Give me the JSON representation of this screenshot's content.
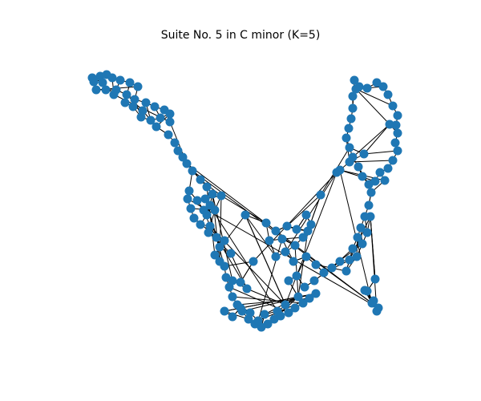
{
  "figure": {
    "title": "Suite No. 5 in C minor (K=5)"
  },
  "style": {
    "node_color": "#1f77b4",
    "edge_color": "#000000",
    "background": "#ffffff"
  }
}
